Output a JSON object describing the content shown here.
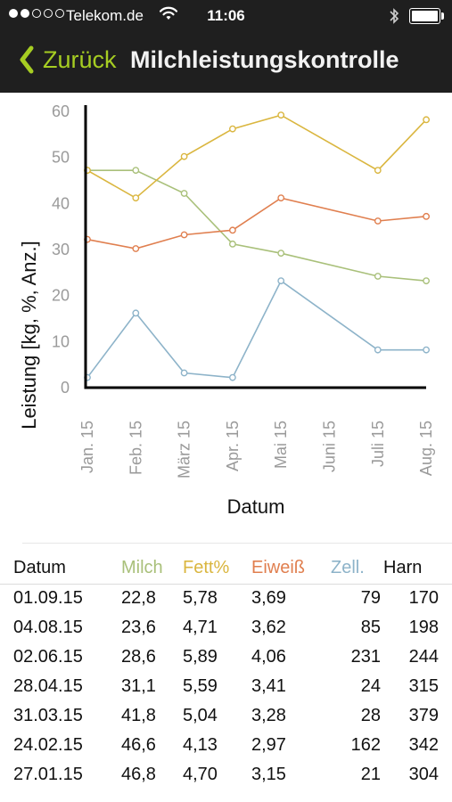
{
  "status_bar": {
    "carrier": "Telekom.de",
    "time": "11:06",
    "signal_dots_filled": 2,
    "signal_dots_total": 5,
    "battery_level": 1.0
  },
  "nav": {
    "back_label": "Zurück",
    "title": "Milchleistungskontrolle"
  },
  "colors": {
    "milch": "#a9c07a",
    "fett": "#dab63f",
    "eiweiss": "#e07f4f",
    "zell": "#8db3c9",
    "accent": "#a6cd22"
  },
  "chart_data": {
    "type": "line",
    "xlabel": "Datum",
    "ylabel": "Leistung [kg, %, Anz.]",
    "ylim": [
      0,
      60
    ],
    "yticks": [
      "0",
      "10",
      "20",
      "30",
      "40",
      "50",
      "60"
    ],
    "categories": [
      "Jan. 15",
      "Feb. 15",
      "März 15",
      "Apr. 15",
      "Mai 15",
      "Juni 15",
      "Juli 15",
      "Aug. 15"
    ],
    "series": [
      {
        "name": "Milch",
        "color": "#a9c07a",
        "points": [
          [
            0,
            47
          ],
          [
            1,
            47
          ],
          [
            2,
            42
          ],
          [
            3,
            31
          ],
          [
            4,
            29
          ],
          [
            6,
            24
          ],
          [
            7,
            23
          ]
        ]
      },
      {
        "name": "Fett%",
        "color": "#dab63f",
        "points": [
          [
            0,
            47
          ],
          [
            1,
            41
          ],
          [
            2,
            50
          ],
          [
            3,
            56
          ],
          [
            4,
            59
          ],
          [
            6,
            47
          ],
          [
            7,
            58
          ]
        ]
      },
      {
        "name": "Eiweiß",
        "color": "#e07f4f",
        "points": [
          [
            0,
            32
          ],
          [
            1,
            30
          ],
          [
            2,
            33
          ],
          [
            3,
            34
          ],
          [
            4,
            41
          ],
          [
            6,
            36
          ],
          [
            7,
            37
          ]
        ]
      },
      {
        "name": "Zell.",
        "color": "#8db3c9",
        "points": [
          [
            0,
            2
          ],
          [
            1,
            16
          ],
          [
            2,
            3
          ],
          [
            3,
            2
          ],
          [
            4,
            23
          ],
          [
            6,
            8
          ],
          [
            7,
            8
          ]
        ]
      }
    ]
  },
  "table": {
    "headers": {
      "datum": "Datum",
      "milch": "Milch",
      "fett": "Fett%",
      "eiweiss": "Eiweiß",
      "zell": "Zell.",
      "harn": "Harn"
    },
    "rows": [
      {
        "datum": "01.09.15",
        "milch": "22,8",
        "fett": "5,78",
        "eiweiss": "3,69",
        "zell": "79",
        "harn": "170"
      },
      {
        "datum": "04.08.15",
        "milch": "23,6",
        "fett": "4,71",
        "eiweiss": "3,62",
        "zell": "85",
        "harn": "198"
      },
      {
        "datum": "02.06.15",
        "milch": "28,6",
        "fett": "5,89",
        "eiweiss": "4,06",
        "zell": "231",
        "harn": "244"
      },
      {
        "datum": "28.04.15",
        "milch": "31,1",
        "fett": "5,59",
        "eiweiss": "3,41",
        "zell": "24",
        "harn": "315"
      },
      {
        "datum": "31.03.15",
        "milch": "41,8",
        "fett": "5,04",
        "eiweiss": "3,28",
        "zell": "28",
        "harn": "379"
      },
      {
        "datum": "24.02.15",
        "milch": "46,6",
        "fett": "4,13",
        "eiweiss": "2,97",
        "zell": "162",
        "harn": "342"
      },
      {
        "datum": "27.01.15",
        "milch": "46,8",
        "fett": "4,70",
        "eiweiss": "3,15",
        "zell": "21",
        "harn": "304"
      }
    ]
  }
}
